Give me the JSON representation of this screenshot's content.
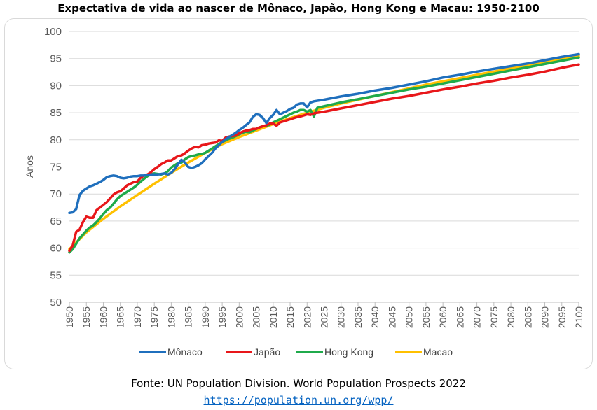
{
  "chart_data": {
    "type": "line",
    "title": "Expectativa de vida ao nascer de Mônaco, Japão, Hong Kong e Macau: 1950-2100",
    "ylabel": "Anos",
    "xlabel": "",
    "ylim": [
      50,
      100
    ],
    "xlim": [
      1950,
      2100
    ],
    "y_ticks": [
      50,
      55,
      60,
      65,
      70,
      75,
      80,
      85,
      90,
      95,
      100
    ],
    "x_ticks": [
      1950,
      1955,
      1960,
      1965,
      1970,
      1975,
      1980,
      1985,
      1990,
      1995,
      2000,
      2005,
      2010,
      2015,
      2020,
      2025,
      2030,
      2035,
      2040,
      2045,
      2050,
      2055,
      2060,
      2065,
      2070,
      2075,
      2080,
      2085,
      2090,
      2095,
      2100
    ],
    "grid": true,
    "legend_position": "bottom",
    "series": [
      {
        "name": "Mônaco",
        "color": "#1f6fbd",
        "points": [
          [
            1950,
            66.5
          ],
          [
            1951,
            66.6
          ],
          [
            1952,
            67.2
          ],
          [
            1953,
            69.8
          ],
          [
            1954,
            70.6
          ],
          [
            1955,
            71.0
          ],
          [
            1956,
            71.4
          ],
          [
            1957,
            71.6
          ],
          [
            1958,
            71.9
          ],
          [
            1959,
            72.2
          ],
          [
            1960,
            72.6
          ],
          [
            1961,
            73.1
          ],
          [
            1962,
            73.3
          ],
          [
            1963,
            73.4
          ],
          [
            1964,
            73.3
          ],
          [
            1965,
            73.0
          ],
          [
            1966,
            72.9
          ],
          [
            1967,
            73.0
          ],
          [
            1968,
            73.2
          ],
          [
            1969,
            73.3
          ],
          [
            1970,
            73.3
          ],
          [
            1971,
            73.4
          ],
          [
            1972,
            73.4
          ],
          [
            1973,
            73.5
          ],
          [
            1974,
            73.6
          ],
          [
            1975,
            73.6
          ],
          [
            1976,
            73.6
          ],
          [
            1977,
            73.7
          ],
          [
            1978,
            73.8
          ],
          [
            1979,
            73.6
          ],
          [
            1980,
            73.9
          ],
          [
            1981,
            74.6
          ],
          [
            1982,
            75.5
          ],
          [
            1983,
            76.3
          ],
          [
            1984,
            75.8
          ],
          [
            1985,
            75.0
          ],
          [
            1986,
            74.8
          ],
          [
            1987,
            75.0
          ],
          [
            1988,
            75.3
          ],
          [
            1989,
            75.7
          ],
          [
            1990,
            76.4
          ],
          [
            1991,
            77.0
          ],
          [
            1992,
            77.6
          ],
          [
            1993,
            78.4
          ],
          [
            1994,
            79.0
          ],
          [
            1995,
            79.6
          ],
          [
            1996,
            80.1
          ],
          [
            1997,
            80.5
          ],
          [
            1998,
            80.9
          ],
          [
            1999,
            81.3
          ],
          [
            2000,
            81.8
          ],
          [
            2001,
            82.2
          ],
          [
            2002,
            82.7
          ],
          [
            2003,
            83.2
          ],
          [
            2004,
            84.2
          ],
          [
            2005,
            84.7
          ],
          [
            2006,
            84.6
          ],
          [
            2007,
            84.0
          ],
          [
            2008,
            83.1
          ],
          [
            2009,
            84.0
          ],
          [
            2010,
            84.6
          ],
          [
            2011,
            85.5
          ],
          [
            2012,
            84.7
          ],
          [
            2013,
            85.0
          ],
          [
            2014,
            85.3
          ],
          [
            2015,
            85.7
          ],
          [
            2016,
            85.9
          ],
          [
            2017,
            86.5
          ],
          [
            2018,
            86.7
          ],
          [
            2019,
            86.7
          ],
          [
            2020,
            86.0
          ],
          [
            2021,
            86.9
          ],
          [
            2022,
            87.1
          ],
          [
            2025,
            87.4
          ],
          [
            2030,
            88.0
          ],
          [
            2035,
            88.5
          ],
          [
            2040,
            89.1
          ],
          [
            2045,
            89.6
          ],
          [
            2050,
            90.2
          ],
          [
            2055,
            90.8
          ],
          [
            2060,
            91.5
          ],
          [
            2065,
            92.0
          ],
          [
            2070,
            92.6
          ],
          [
            2075,
            93.1
          ],
          [
            2080,
            93.6
          ],
          [
            2085,
            94.1
          ],
          [
            2090,
            94.7
          ],
          [
            2095,
            95.3
          ],
          [
            2100,
            95.8
          ]
        ]
      },
      {
        "name": "Japão",
        "color": "#e8171a",
        "points": [
          [
            1950,
            59.5
          ],
          [
            1951,
            60.5
          ],
          [
            1952,
            63.0
          ],
          [
            1953,
            63.4
          ],
          [
            1954,
            64.8
          ],
          [
            1955,
            65.8
          ],
          [
            1956,
            65.6
          ],
          [
            1957,
            65.6
          ],
          [
            1958,
            67.0
          ],
          [
            1959,
            67.5
          ],
          [
            1960,
            68.0
          ],
          [
            1961,
            68.5
          ],
          [
            1962,
            69.2
          ],
          [
            1963,
            69.9
          ],
          [
            1964,
            70.3
          ],
          [
            1965,
            70.5
          ],
          [
            1966,
            71.0
          ],
          [
            1967,
            71.6
          ],
          [
            1968,
            71.9
          ],
          [
            1969,
            72.2
          ],
          [
            1970,
            72.3
          ],
          [
            1971,
            73.0
          ],
          [
            1972,
            73.4
          ],
          [
            1973,
            73.6
          ],
          [
            1974,
            74.0
          ],
          [
            1975,
            74.6
          ],
          [
            1976,
            75.0
          ],
          [
            1977,
            75.5
          ],
          [
            1978,
            75.8
          ],
          [
            1979,
            76.2
          ],
          [
            1980,
            76.2
          ],
          [
            1981,
            76.6
          ],
          [
            1982,
            77.0
          ],
          [
            1983,
            77.1
          ],
          [
            1984,
            77.5
          ],
          [
            1985,
            78.0
          ],
          [
            1986,
            78.4
          ],
          [
            1987,
            78.7
          ],
          [
            1988,
            78.6
          ],
          [
            1989,
            79.0
          ],
          [
            1990,
            79.1
          ],
          [
            1991,
            79.3
          ],
          [
            1992,
            79.4
          ],
          [
            1993,
            79.5
          ],
          [
            1994,
            79.9
          ],
          [
            1995,
            79.8
          ],
          [
            1996,
            80.4
          ],
          [
            1997,
            80.6
          ],
          [
            1998,
            80.7
          ],
          [
            1999,
            80.8
          ],
          [
            2000,
            81.2
          ],
          [
            2001,
            81.5
          ],
          [
            2002,
            81.7
          ],
          [
            2003,
            81.8
          ],
          [
            2004,
            82.0
          ],
          [
            2005,
            82.0
          ],
          [
            2006,
            82.3
          ],
          [
            2007,
            82.5
          ],
          [
            2008,
            82.7
          ],
          [
            2009,
            83.0
          ],
          [
            2010,
            83.0
          ],
          [
            2011,
            82.6
          ],
          [
            2012,
            83.2
          ],
          [
            2013,
            83.4
          ],
          [
            2014,
            83.6
          ],
          [
            2015,
            83.8
          ],
          [
            2016,
            84.0
          ],
          [
            2017,
            84.2
          ],
          [
            2018,
            84.3
          ],
          [
            2019,
            84.5
          ],
          [
            2020,
            84.7
          ],
          [
            2021,
            84.6
          ],
          [
            2022,
            84.9
          ],
          [
            2025,
            85.2
          ],
          [
            2030,
            85.8
          ],
          [
            2035,
            86.4
          ],
          [
            2040,
            87.0
          ],
          [
            2045,
            87.6
          ],
          [
            2050,
            88.1
          ],
          [
            2055,
            88.7
          ],
          [
            2060,
            89.3
          ],
          [
            2065,
            89.8
          ],
          [
            2070,
            90.4
          ],
          [
            2075,
            90.9
          ],
          [
            2080,
            91.5
          ],
          [
            2085,
            92.0
          ],
          [
            2090,
            92.6
          ],
          [
            2095,
            93.3
          ],
          [
            2100,
            93.9
          ]
        ]
      },
      {
        "name": "Hong Kong",
        "color": "#1faa4b",
        "points": [
          [
            1950,
            59.2
          ],
          [
            1951,
            59.8
          ],
          [
            1952,
            60.8
          ],
          [
            1953,
            61.8
          ],
          [
            1954,
            62.5
          ],
          [
            1955,
            63.2
          ],
          [
            1956,
            63.8
          ],
          [
            1957,
            64.2
          ],
          [
            1958,
            64.8
          ],
          [
            1959,
            65.5
          ],
          [
            1960,
            66.3
          ],
          [
            1961,
            67.0
          ],
          [
            1962,
            67.5
          ],
          [
            1963,
            68.2
          ],
          [
            1964,
            69.0
          ],
          [
            1965,
            69.6
          ],
          [
            1966,
            70.0
          ],
          [
            1967,
            70.4
          ],
          [
            1968,
            70.8
          ],
          [
            1969,
            71.2
          ],
          [
            1970,
            71.7
          ],
          [
            1971,
            72.3
          ],
          [
            1972,
            72.8
          ],
          [
            1973,
            73.3
          ],
          [
            1974,
            73.6
          ],
          [
            1975,
            73.8
          ],
          [
            1976,
            73.7
          ],
          [
            1977,
            73.6
          ],
          [
            1978,
            73.8
          ],
          [
            1979,
            74.2
          ],
          [
            1980,
            74.9
          ],
          [
            1981,
            75.3
          ],
          [
            1982,
            75.7
          ],
          [
            1983,
            75.8
          ],
          [
            1984,
            76.4
          ],
          [
            1985,
            76.8
          ],
          [
            1986,
            77.0
          ],
          [
            1987,
            77.1
          ],
          [
            1988,
            77.3
          ],
          [
            1989,
            77.4
          ],
          [
            1990,
            77.6
          ],
          [
            1991,
            78.0
          ],
          [
            1992,
            78.4
          ],
          [
            1993,
            78.8
          ],
          [
            1994,
            79.2
          ],
          [
            1995,
            79.6
          ],
          [
            1996,
            79.9
          ],
          [
            1997,
            80.2
          ],
          [
            1998,
            80.4
          ],
          [
            1999,
            80.7
          ],
          [
            2000,
            81.0
          ],
          [
            2001,
            81.3
          ],
          [
            2002,
            81.5
          ],
          [
            2003,
            81.4
          ],
          [
            2004,
            81.7
          ],
          [
            2005,
            82.0
          ],
          [
            2006,
            82.3
          ],
          [
            2007,
            82.5
          ],
          [
            2008,
            82.6
          ],
          [
            2009,
            82.8
          ],
          [
            2010,
            83.2
          ],
          [
            2011,
            83.5
          ],
          [
            2012,
            83.8
          ],
          [
            2013,
            84.1
          ],
          [
            2014,
            84.4
          ],
          [
            2015,
            84.7
          ],
          [
            2016,
            85.0
          ],
          [
            2017,
            85.2
          ],
          [
            2018,
            85.5
          ],
          [
            2019,
            85.5
          ],
          [
            2020,
            85.2
          ],
          [
            2021,
            85.5
          ],
          [
            2022,
            84.3
          ],
          [
            2023,
            85.9
          ],
          [
            2025,
            86.2
          ],
          [
            2030,
            86.9
          ],
          [
            2035,
            87.5
          ],
          [
            2040,
            88.1
          ],
          [
            2045,
            88.7
          ],
          [
            2050,
            89.3
          ],
          [
            2055,
            89.8
          ],
          [
            2060,
            90.4
          ],
          [
            2065,
            91.0
          ],
          [
            2070,
            91.6
          ],
          [
            2075,
            92.2
          ],
          [
            2080,
            92.8
          ],
          [
            2085,
            93.4
          ],
          [
            2090,
            94.0
          ],
          [
            2095,
            94.6
          ],
          [
            2100,
            95.2
          ]
        ]
      },
      {
        "name": "Macao",
        "color": "#ffc000",
        "points": [
          [
            1950,
            59.8
          ],
          [
            1955,
            62.9
          ],
          [
            1960,
            65.4
          ],
          [
            1965,
            67.7
          ],
          [
            1970,
            69.8
          ],
          [
            1975,
            71.9
          ],
          [
            1980,
            73.9
          ],
          [
            1985,
            75.8
          ],
          [
            1990,
            77.6
          ],
          [
            1995,
            79.2
          ],
          [
            2000,
            80.5
          ],
          [
            2005,
            81.7
          ],
          [
            2010,
            82.9
          ],
          [
            2015,
            84.0
          ],
          [
            2020,
            85.0
          ],
          [
            2025,
            85.9
          ],
          [
            2030,
            86.7
          ],
          [
            2035,
            87.4
          ],
          [
            2040,
            88.1
          ],
          [
            2045,
            88.8
          ],
          [
            2050,
            89.5
          ],
          [
            2055,
            90.2
          ],
          [
            2060,
            90.8
          ],
          [
            2065,
            91.4
          ],
          [
            2070,
            92.0
          ],
          [
            2075,
            92.6
          ],
          [
            2080,
            93.2
          ],
          [
            2085,
            93.8
          ],
          [
            2090,
            94.4
          ],
          [
            2095,
            95.0
          ],
          [
            2100,
            95.5
          ]
        ]
      }
    ]
  },
  "footer": {
    "source": "Fonte: UN Population Division. World Population Prospects 2022",
    "url": "https://population.un.org/wpp/"
  }
}
